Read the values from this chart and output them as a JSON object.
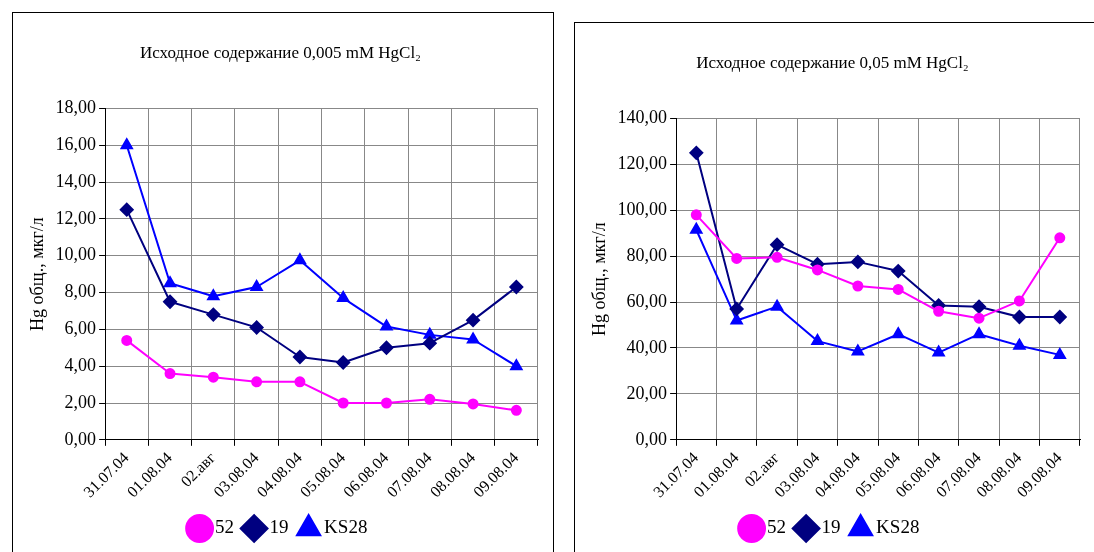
{
  "chart_data": [
    {
      "type": "line",
      "title": "Исходное содержание 0,005 mM HgCl₂",
      "ylabel": "Hg общ., мкг/л",
      "categories": [
        "31.07.04",
        "01.08.04",
        "02.авг",
        "03.08.04",
        "04.08.04",
        "05.08.04",
        "06.08.04",
        "07.08.04",
        "08.08.04",
        "09.08.04"
      ],
      "series": [
        {
          "name": "52",
          "color": "#ff00ff",
          "marker": "circle",
          "values": [
            5.4,
            3.6,
            3.4,
            3.15,
            3.15,
            2.0,
            2.0,
            2.2,
            1.95,
            1.6
          ]
        },
        {
          "name": "19",
          "color": "#000080",
          "marker": "diamond",
          "values": [
            12.5,
            7.5,
            6.8,
            6.1,
            4.5,
            4.2,
            5.0,
            5.25,
            6.5,
            8.3
          ]
        },
        {
          "name": "KS28",
          "color": "#0000ff",
          "marker": "triangle",
          "values": [
            16.0,
            8.5,
            7.8,
            8.3,
            9.75,
            7.7,
            6.15,
            5.7,
            5.45,
            4.0
          ]
        }
      ],
      "ylim": [
        0,
        18
      ],
      "yticks": [
        {
          "value": 0,
          "label": "0,00"
        },
        {
          "value": 2,
          "label": "2,00"
        },
        {
          "value": 4,
          "label": "4,00"
        },
        {
          "value": 6,
          "label": "6,00"
        },
        {
          "value": 8,
          "label": "8,00"
        },
        {
          "value": 10,
          "label": "10,00"
        },
        {
          "value": 12,
          "label": "12,00"
        },
        {
          "value": 14,
          "label": "14,00"
        },
        {
          "value": 16,
          "label": "16,00"
        },
        {
          "value": 18,
          "label": "18,00"
        }
      ],
      "grid": true,
      "legend": "bottom",
      "line_style": "solid"
    },
    {
      "type": "line",
      "title": "Исходное содержание 0,05 mM HgCl₂",
      "ylabel": "Hg общ., мкг/л",
      "categories": [
        "31.07.04",
        "01.08.04",
        "02.авг",
        "03.08.04",
        "04.08.04",
        "05.08.04",
        "06.08.04",
        "07.08.04",
        "08.08.04",
        "09.08.04"
      ],
      "series": [
        {
          "name": "52",
          "color": "#ff00ff",
          "marker": "circle",
          "values": [
            98,
            79,
            79.5,
            74,
            67,
            65.5,
            56,
            53,
            60.5,
            88
          ]
        },
        {
          "name": "19",
          "color": "#000080",
          "marker": "diamond",
          "values": [
            125,
            57,
            85,
            76.5,
            77.5,
            73.5,
            58.5,
            58,
            53.5,
            53.5
          ]
        },
        {
          "name": "KS28",
          "color": "#0000ff",
          "marker": "triangle",
          "values": [
            91.5,
            52,
            58,
            43,
            38.5,
            46,
            38,
            46,
            41,
            37
          ]
        }
      ],
      "ylim": [
        0,
        140
      ],
      "yticks": [
        {
          "value": 0,
          "label": "0,00"
        },
        {
          "value": 20,
          "label": "20,00"
        },
        {
          "value": 40,
          "label": "40,00"
        },
        {
          "value": 60,
          "label": "60,00"
        },
        {
          "value": 80,
          "label": "80,00"
        },
        {
          "value": 100,
          "label": "100,00"
        },
        {
          "value": 120,
          "label": "120,00"
        },
        {
          "value": 140,
          "label": "140,00"
        }
      ],
      "grid": true,
      "legend": "bottom",
      "line_style": "solid"
    }
  ]
}
